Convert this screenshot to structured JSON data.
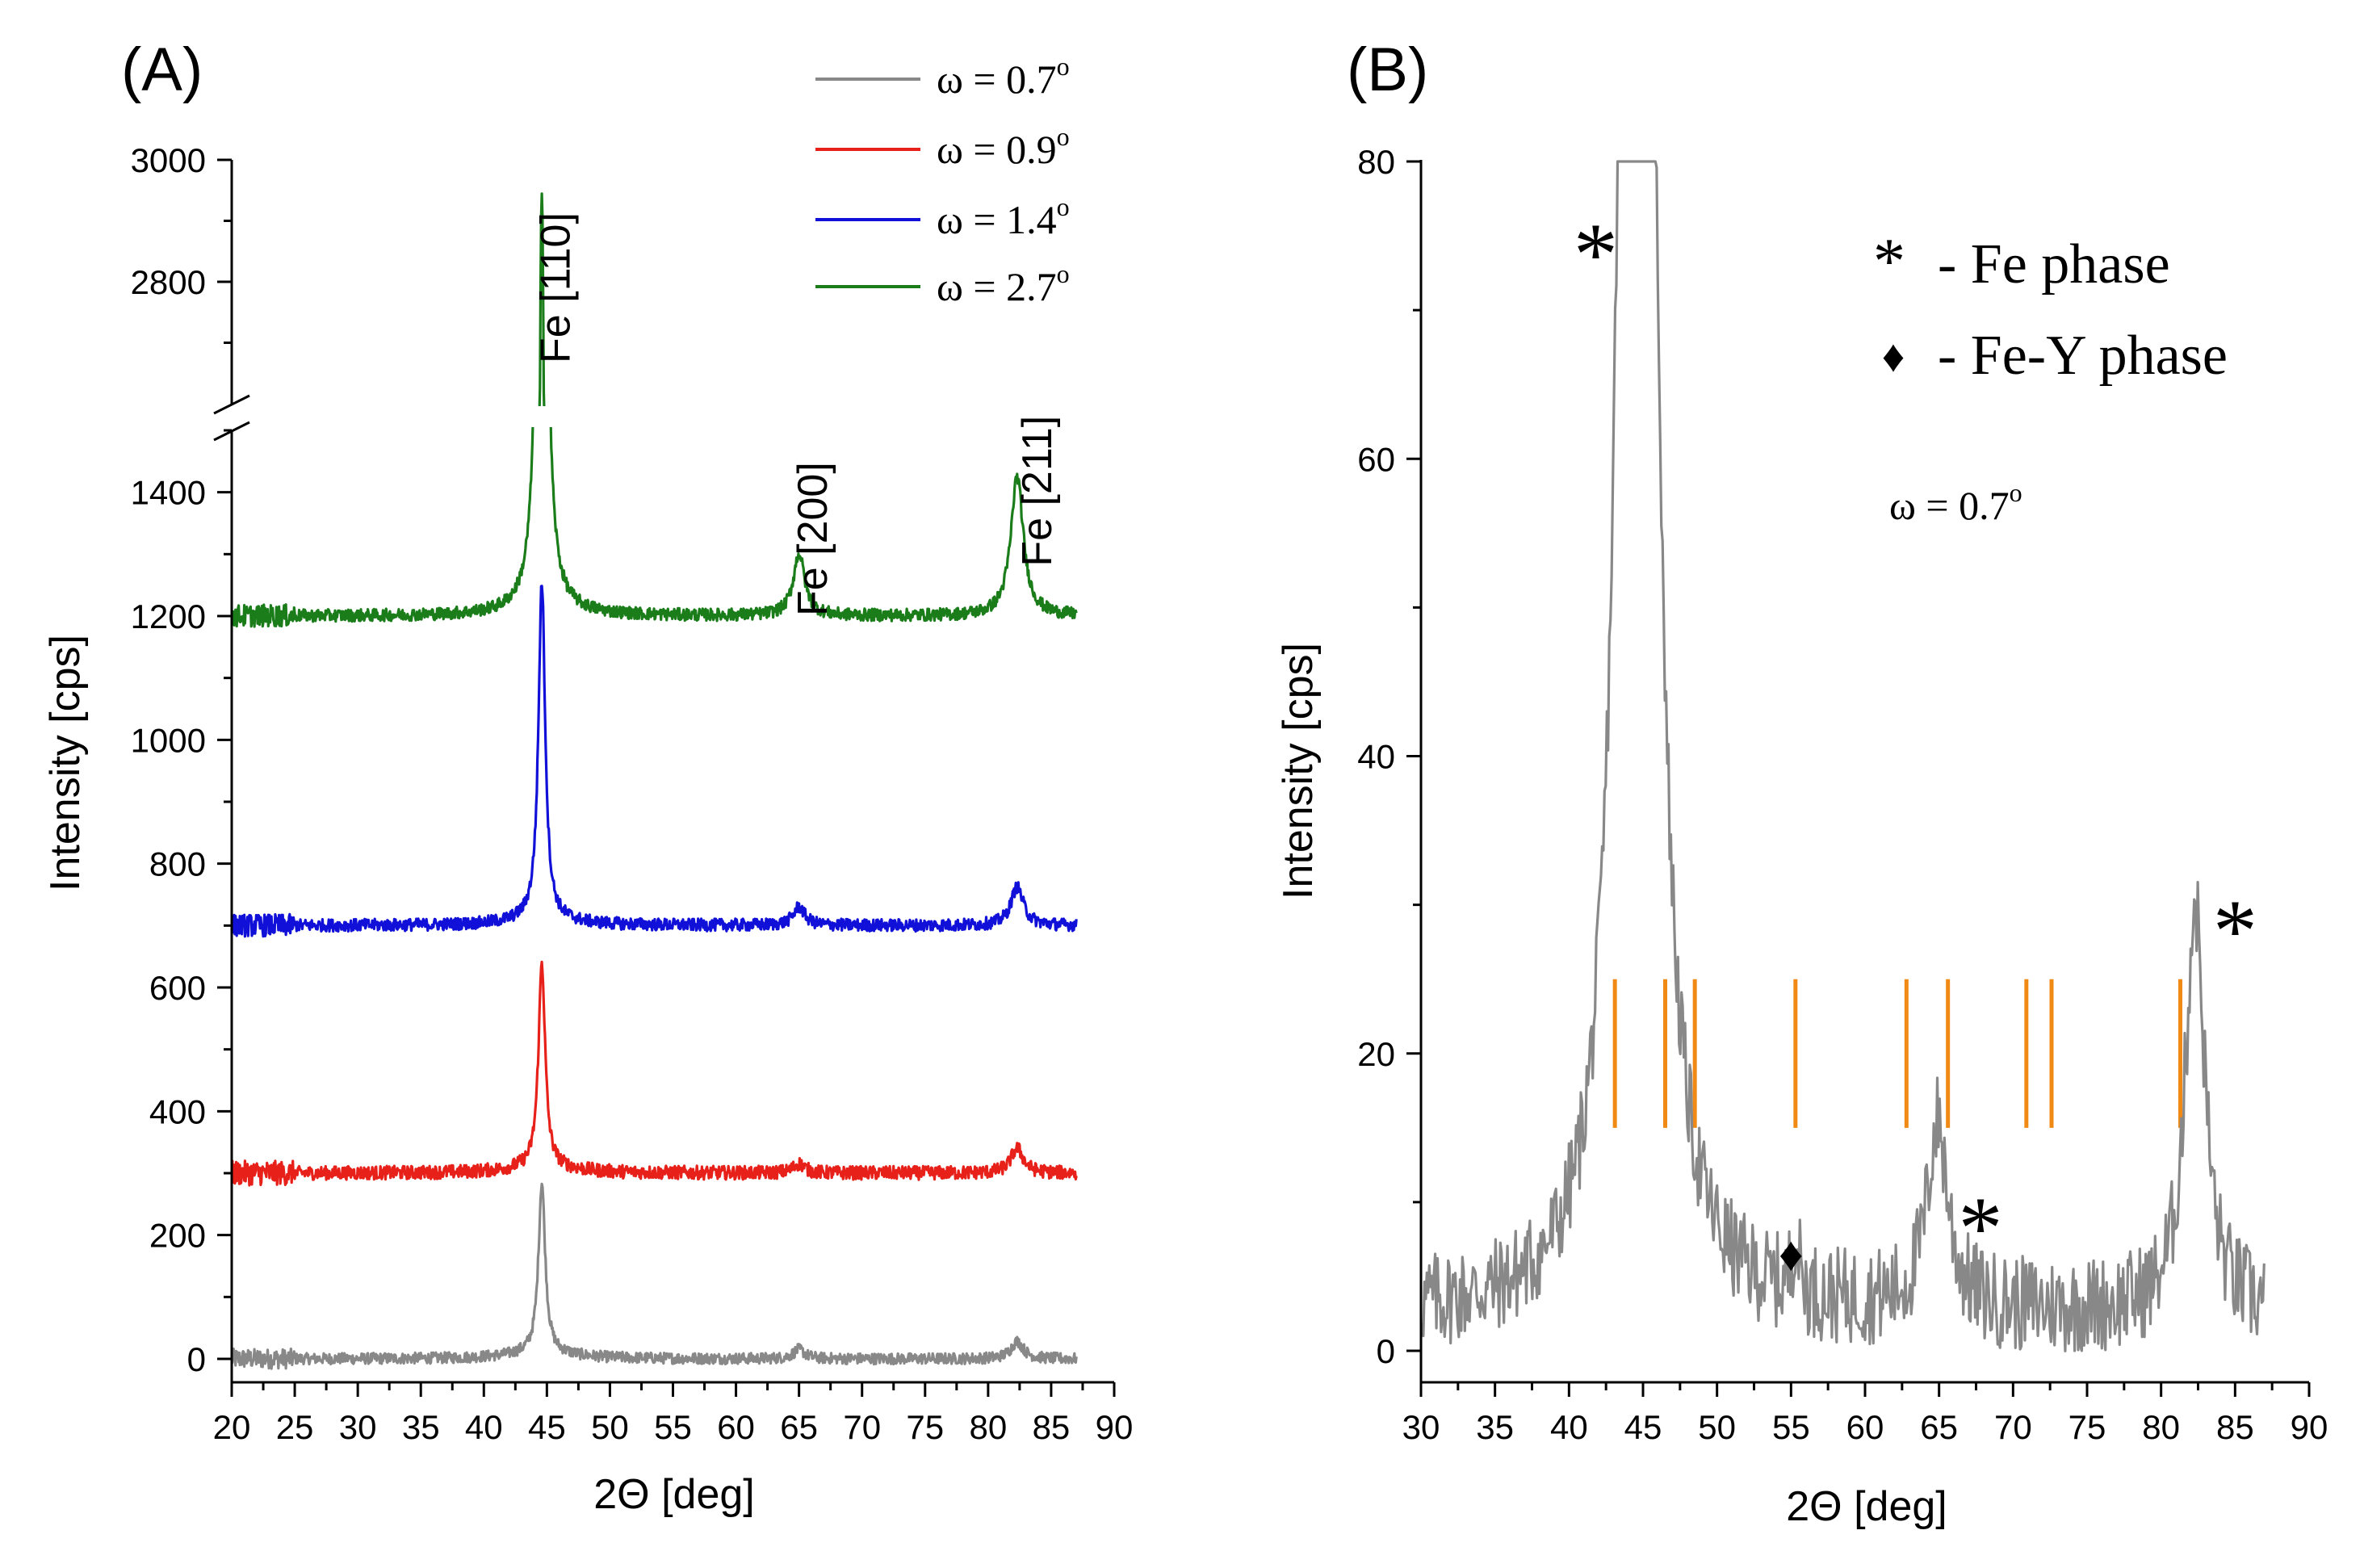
{
  "chart_data": [
    {
      "panel_label": "(A)",
      "type": "line",
      "xlabel": "2Θ [deg]",
      "ylabel": "Intensity [cps]",
      "xlim": [
        20,
        90
      ],
      "xticks": [
        "20",
        "25",
        "30",
        "35",
        "40",
        "45",
        "50",
        "55",
        "60",
        "65",
        "70",
        "75",
        "80",
        "85",
        "90"
      ],
      "ylim_lower": [
        0,
        1500
      ],
      "ylim_upper": [
        2600,
        3000
      ],
      "yticks_lower": [
        "0",
        "200",
        "400",
        "600",
        "800",
        "1000",
        "1200",
        "1400"
      ],
      "yticks_upper": [
        "2800",
        "3000"
      ],
      "axis_break": true,
      "legend_position": "top-right",
      "peaks": {
        "p110": 44.6,
        "p200": 65.0,
        "p211": 82.3
      },
      "series": [
        {
          "name": "ω = 0.7",
          "sup": "o",
          "color": "#888888",
          "baseline": 0,
          "amp110": 275,
          "amp200": 15,
          "amp211": 28,
          "noise": 9
        },
        {
          "name": "ω = 0.9",
          "sup": "o",
          "color": "#e8201a",
          "baseline": 300,
          "amp110": 330,
          "amp200": 15,
          "amp211": 40,
          "noise": 11
        },
        {
          "name": "ω = 1.4",
          "sup": "o",
          "color": "#1010d8",
          "baseline": 700,
          "amp110": 545,
          "amp200": 30,
          "amp211": 62,
          "noise": 10
        },
        {
          "name": "ω = 2.7",
          "sup": "o",
          "color": "#1a7d1a",
          "baseline": 1200,
          "amp110": 1730,
          "amp200": 100,
          "amp211": 225,
          "noise": 10
        }
      ],
      "annotations": [
        {
          "text": "Fe [110]",
          "x": 45.2,
          "y": 1450
        },
        {
          "text": "Fe [200]",
          "x": 65.6,
          "y": 1200
        },
        {
          "text": "Fe [211]",
          "x": 83.4,
          "y": 1280
        }
      ]
    },
    {
      "panel_label": "(B)",
      "type": "line",
      "xlabel": "2Θ [deg]",
      "ylabel": "Intensity [cps]",
      "xlim": [
        30,
        90
      ],
      "ylim": [
        -2,
        80
      ],
      "xticks": [
        "30",
        "35",
        "40",
        "45",
        "50",
        "55",
        "60",
        "65",
        "70",
        "75",
        "80",
        "85",
        "90"
      ],
      "yticks": [
        "0",
        "20",
        "40",
        "60",
        "80"
      ],
      "series": [
        {
          "name": "ω = 0.7",
          "sup": "o",
          "color": "#888888"
        }
      ],
      "reference_lines": {
        "color": "#f08a14",
        "y_range": [
          15,
          25
        ],
        "x": [
          43.1,
          46.5,
          48.5,
          55.3,
          62.8,
          65.6,
          70.9,
          72.6,
          81.3
        ]
      },
      "markers": [
        {
          "symbol": "*",
          "x": 41.8,
          "y": 75
        },
        {
          "symbol": "*",
          "x": 67.8,
          "y": 9.5
        },
        {
          "symbol": "*",
          "x": 85.0,
          "y": 29.5
        },
        {
          "symbol": "♦",
          "x": 55.0,
          "y": 6.5
        }
      ],
      "legend": [
        {
          "symbol": "*",
          "label": "- Fe phase"
        },
        {
          "symbol": "♦",
          "label": "- Fe-Y phase"
        }
      ],
      "note": {
        "text": "ω = 0.7",
        "sup": "o"
      }
    }
  ]
}
